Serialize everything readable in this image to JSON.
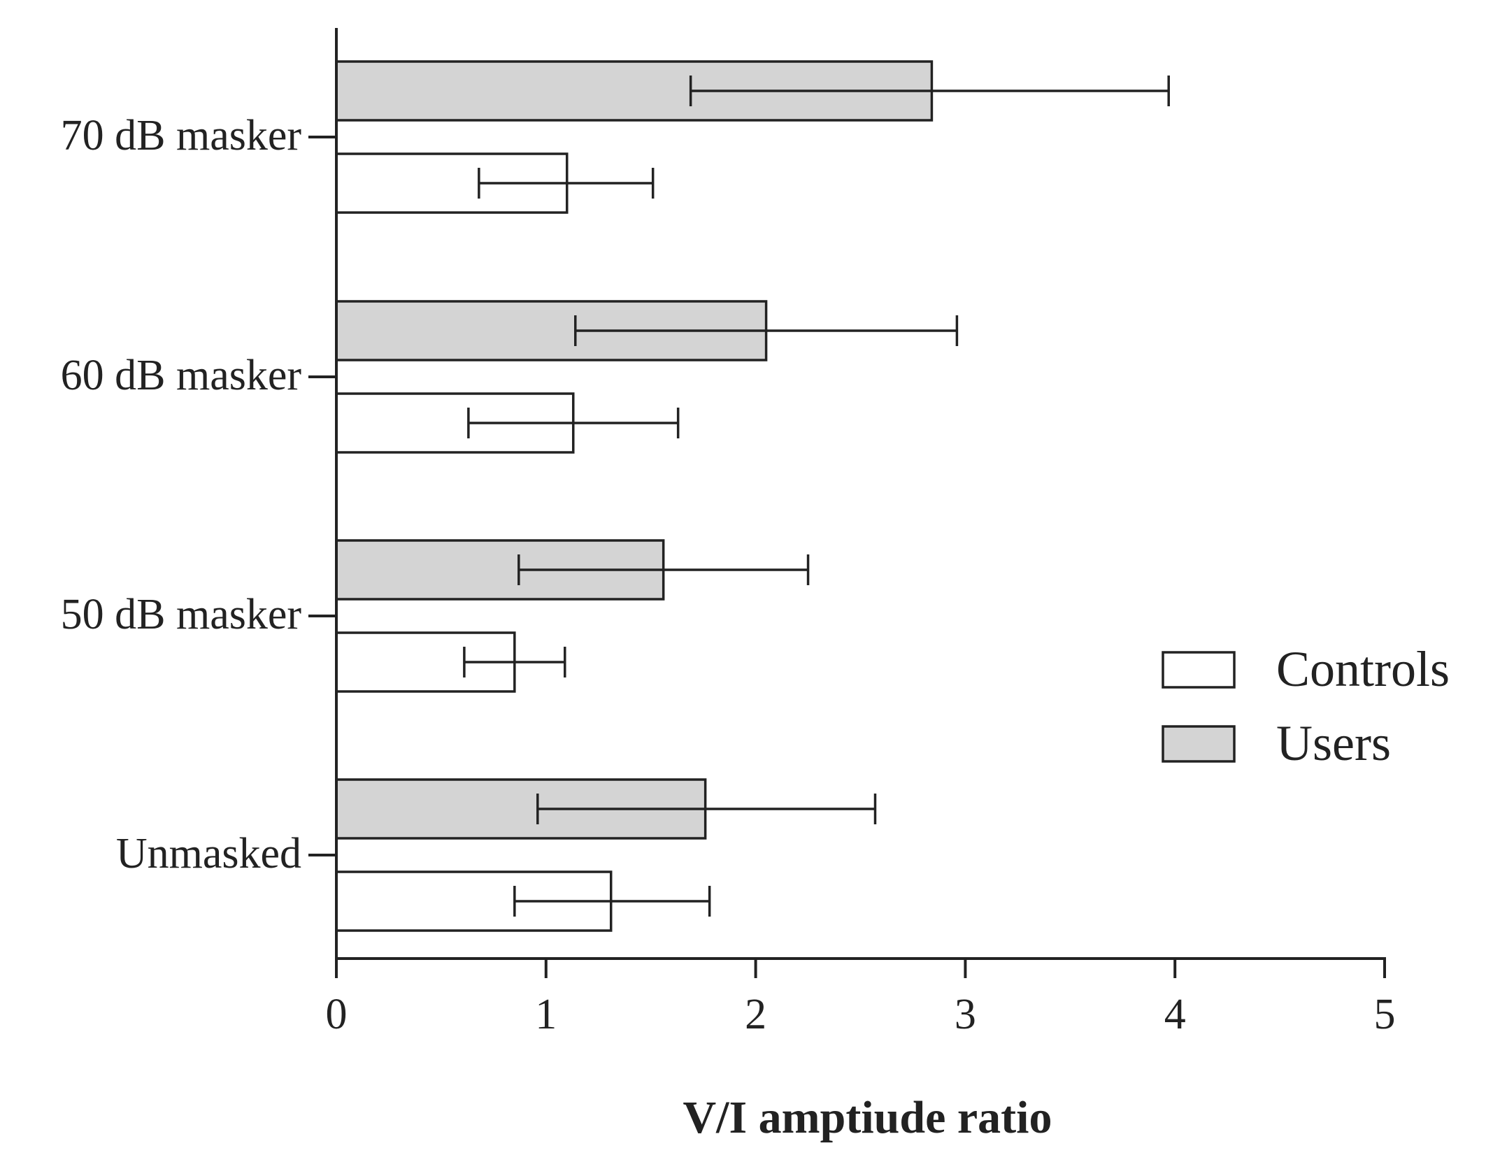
{
  "chart_data": {
    "type": "bar",
    "orientation": "horizontal",
    "categories": [
      "Unmasked",
      "50 dB masker",
      "60 dB masker",
      "70 dB masker"
    ],
    "series": [
      {
        "name": "Users",
        "color": "#d4d4d4",
        "values": [
          1.76,
          1.56,
          2.05,
          2.84
        ],
        "error_low": [
          0.96,
          0.87,
          1.14,
          1.69
        ],
        "error_high": [
          2.57,
          2.25,
          2.96,
          3.97
        ]
      },
      {
        "name": "Controls",
        "color": "#ffffff",
        "values": [
          1.31,
          0.85,
          1.13,
          1.1
        ],
        "error_low": [
          0.85,
          0.61,
          0.63,
          0.68
        ],
        "error_high": [
          1.78,
          1.09,
          1.63,
          1.51
        ]
      }
    ],
    "title": "",
    "xlabel": "V/I amptiude ratio",
    "ylabel": "",
    "xlim": [
      0,
      5
    ],
    "xticks": [
      0,
      1,
      2,
      3,
      4,
      5
    ],
    "xtick_labels": [
      "0",
      "1",
      "2",
      "3",
      "4",
      "5"
    ],
    "grid": false,
    "legend": {
      "position": "right",
      "entries": [
        {
          "label": "Controls",
          "color": "#ffffff"
        },
        {
          "label": "Users",
          "color": "#d4d4d4"
        }
      ]
    }
  }
}
